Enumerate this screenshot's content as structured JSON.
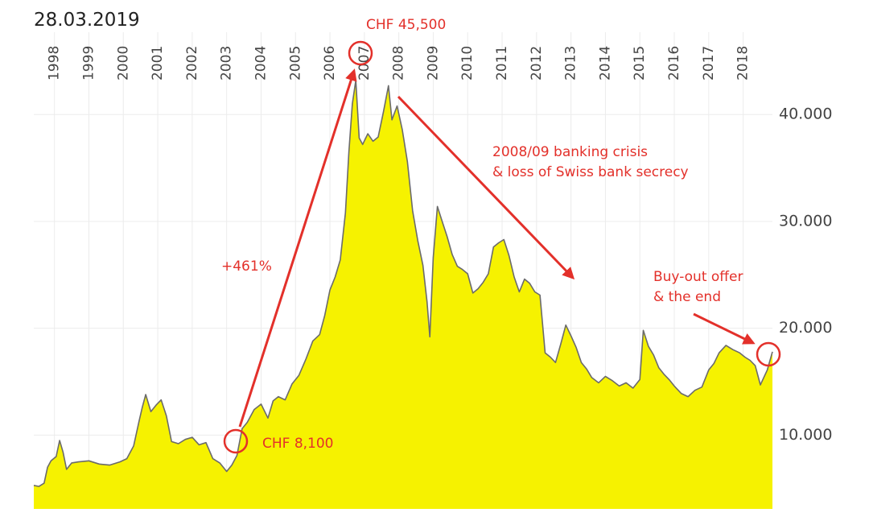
{
  "chart_data": {
    "type": "area",
    "annotations": [
      "28.03.2019",
      "CHF 45,500",
      "CHF 8,100",
      "+461%",
      "2008/09 banking crisis",
      "& loss of Swiss bank secrecy",
      "Buy-out offer",
      "& the end"
    ],
    "x": [
      1997.4,
      1997.55,
      1997.7,
      1997.8,
      1997.9,
      1998.05,
      1998.15,
      1998.25,
      1998.35,
      1998.5,
      1998.7,
      1999.0,
      1999.3,
      1999.6,
      1999.9,
      2000.1,
      2000.3,
      2000.45,
      2000.55,
      2000.65,
      2000.8,
      2000.95,
      2001.1,
      2001.25,
      2001.4,
      2001.6,
      2001.8,
      2002.0,
      2002.2,
      2002.4,
      2002.6,
      2002.8,
      2003.0,
      2003.15,
      2003.3,
      2003.45,
      2003.6,
      2003.8,
      2004.0,
      2004.2,
      2004.35,
      2004.5,
      2004.7,
      2004.9,
      2005.1,
      2005.3,
      2005.5,
      2005.7,
      2005.85,
      2006.0,
      2006.15,
      2006.3,
      2006.45,
      2006.55,
      2006.65,
      2006.75,
      2006.85,
      2006.95,
      2007.1,
      2007.25,
      2007.4,
      2007.55,
      2007.7,
      2007.8,
      2007.95,
      2008.1,
      2008.25,
      2008.4,
      2008.55,
      2008.7,
      2008.82,
      2008.9,
      2009.0,
      2009.12,
      2009.25,
      2009.4,
      2009.55,
      2009.7,
      2009.85,
      2010.0,
      2010.15,
      2010.3,
      2010.45,
      2010.6,
      2010.75,
      2010.9,
      2011.05,
      2011.2,
      2011.35,
      2011.5,
      2011.65,
      2011.8,
      2011.95,
      2012.1,
      2012.25,
      2012.4,
      2012.55,
      2012.7,
      2012.85,
      2013.0,
      2013.15,
      2013.3,
      2013.45,
      2013.6,
      2013.8,
      2014.0,
      2014.2,
      2014.4,
      2014.6,
      2014.8,
      2015.0,
      2015.1,
      2015.25,
      2015.4,
      2015.55,
      2015.7,
      2015.85,
      2016.0,
      2016.2,
      2016.4,
      2016.6,
      2016.8,
      2017.0,
      2017.15,
      2017.3,
      2017.5,
      2017.7,
      2017.9,
      2018.05,
      2018.2,
      2018.35,
      2018.5,
      2018.6,
      2018.7,
      2018.85
    ],
    "values": [
      5300,
      5200,
      5500,
      7000,
      7600,
      8000,
      9500,
      8400,
      6800,
      7400,
      7500,
      7600,
      7300,
      7200,
      7500,
      7800,
      9000,
      11200,
      12600,
      13800,
      12200,
      12800,
      13300,
      11800,
      9400,
      9200,
      9600,
      9800,
      9100,
      9300,
      7800,
      7400,
      6600,
      7200,
      8100,
      10600,
      11200,
      12400,
      12900,
      11600,
      13200,
      13600,
      13300,
      14800,
      15600,
      17100,
      18800,
      19400,
      21200,
      23600,
      24800,
      26400,
      30800,
      36500,
      41000,
      43200,
      37800,
      37200,
      38200,
      37500,
      37900,
      40200,
      42700,
      39500,
      40800,
      38600,
      35600,
      31000,
      28200,
      25900,
      22500,
      19200,
      26600,
      31400,
      30100,
      28600,
      26900,
      25800,
      25500,
      25100,
      23300,
      23700,
      24300,
      25100,
      27600,
      28000,
      28300,
      26800,
      24800,
      23400,
      24600,
      24200,
      23400,
      23100,
      17700,
      17300,
      16800,
      18500,
      20300,
      19300,
      18200,
      16800,
      16200,
      15400,
      14900,
      15500,
      15100,
      14600,
      14900,
      14400,
      15200,
      19800,
      18300,
      17500,
      16300,
      15700,
      15200,
      14600,
      13900,
      13600,
      14200,
      14500,
      16100,
      16700,
      17700,
      18400,
      18000,
      17700,
      17300,
      17000,
      16500,
      14700,
      15400,
      16100,
      17800
    ],
    "color": "#f6f200",
    "line_color": "#6b6b6b",
    "xlim": [
      1997.4,
      2018.85
    ],
    "xticks": [
      1998,
      1999,
      2000,
      2001,
      2002,
      2003,
      2004,
      2005,
      2006,
      2007,
      2008,
      2009,
      2010,
      2011,
      2012,
      2013,
      2014,
      2015,
      2016,
      2017,
      2018
    ],
    "ylim": [
      3100,
      47700
    ],
    "yticks": [
      {
        "value": 10000,
        "label": "10.000"
      },
      {
        "value": 20000,
        "label": "20.000"
      },
      {
        "value": 30000,
        "label": "30.000"
      },
      {
        "value": 40000,
        "label": "40.000"
      }
    ],
    "grid": true
  }
}
